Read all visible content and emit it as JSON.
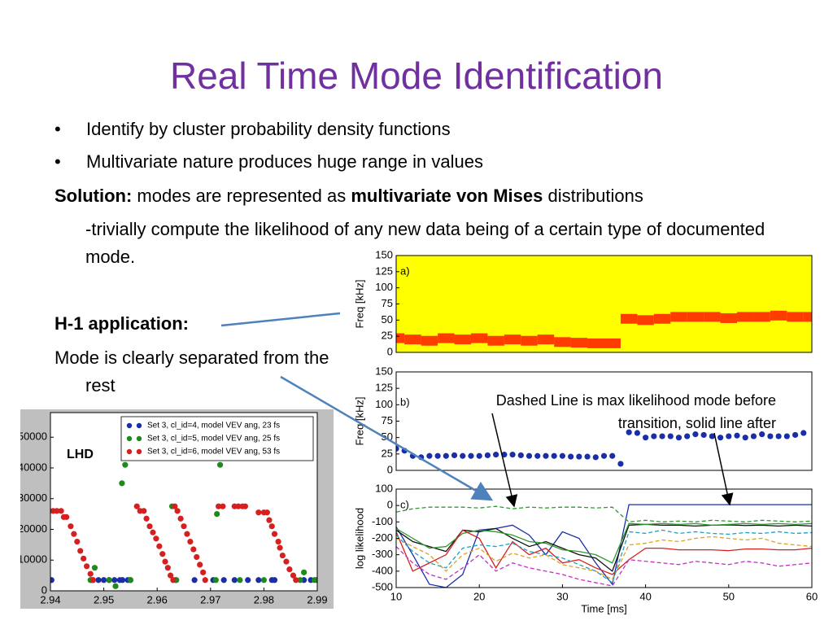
{
  "title": "Real Time Mode Identification",
  "bullets": [
    "Identify by cluster probability density functions",
    "Multivariate nature produces huge range in values"
  ],
  "solution": {
    "label": "Solution:",
    "text1": " modes are represented as ",
    "bold": "multivariate von Mises",
    "text2": " distributions"
  },
  "solution_detail": "-trivially compute the likelihood of any new data being of a certain type of documented mode.",
  "h1": {
    "label": "H-1 application:",
    "text": "Mode is clearly separated from the rest"
  },
  "annotation": "Dashed Line is max likelihood mode before transition, solid line after",
  "chart_data": [
    {
      "type": "scatter",
      "annotation": "LHD",
      "xlim": [
        2.94,
        2.99
      ],
      "xticks": [
        {
          "value": 2.94,
          "label": "2.94"
        },
        2.95,
        2.96,
        2.97,
        2.98,
        2.99
      ],
      "ylim": [
        0,
        58000
      ],
      "yticks": [
        0,
        10000,
        20000,
        30000,
        40000,
        50000
      ],
      "legend": "upper right",
      "series": [
        {
          "name": "Set 3, cl_id=4, model VEV ang, 23 fs",
          "color": "#1a2ea8",
          "x": [
            2.9402,
            2.9478,
            2.949,
            2.95,
            2.951,
            2.952,
            2.953,
            2.9535,
            2.9545,
            2.955,
            2.9635,
            2.967,
            2.9705,
            2.9725,
            2.9745,
            2.977,
            2.979,
            2.9815,
            2.982,
            2.9875,
            2.9888,
            2.99
          ],
          "values": [
            3500,
            3500,
            3500,
            3500,
            3500,
            3500,
            3500,
            3500,
            3500,
            3500,
            3500,
            3500,
            3500,
            3500,
            3500,
            3500,
            3500,
            3500,
            3500,
            3500,
            3500,
            3500
          ]
        },
        {
          "name": "Set 3, cl_id=5, model VEV ang, 25 fs",
          "color": "#1e8a1e",
          "x": [
            2.9475,
            2.9483,
            2.951,
            2.9522,
            2.9534,
            2.954,
            2.955,
            2.9628,
            2.9636,
            2.971,
            2.9712,
            2.9718,
            2.9755,
            2.98,
            2.9868,
            2.9875,
            2.9895
          ],
          "values": [
            3500,
            7500,
            3500,
            1500,
            35000,
            41000,
            3500,
            27500,
            3500,
            3500,
            25000,
            41000,
            3500,
            3500,
            3500,
            6000,
            3500
          ]
        },
        {
          "name": "Set 3, cl_id=6, model VEV ang, 53 fs",
          "color": "#d62020",
          "x": [
            2.9405,
            2.9412,
            2.942,
            2.9425,
            2.943,
            2.9438,
            2.9444,
            2.945,
            2.9456,
            2.9462,
            2.9468,
            2.9475,
            2.948,
            2.9562,
            2.9568,
            2.9575,
            2.958,
            2.9586,
            2.9592,
            2.9598,
            2.9604,
            2.961,
            2.9615,
            2.962,
            2.9625,
            2.963,
            2.9633,
            2.9638,
            2.9644,
            2.965,
            2.9656,
            2.9662,
            2.9668,
            2.9674,
            2.968,
            2.9686,
            2.969,
            2.9715,
            2.9723,
            2.9745,
            2.9752,
            2.976,
            2.9765,
            2.979,
            2.98,
            2.9806,
            2.981,
            2.9815,
            2.982,
            2.9827,
            2.983,
            2.9835,
            2.9842,
            2.9848,
            2.9855,
            2.986
          ],
          "values": [
            26000,
            26000,
            26000,
            24000,
            24000,
            21000,
            18500,
            16000,
            13000,
            10500,
            8000,
            5500,
            3500,
            27500,
            26000,
            26000,
            23500,
            21000,
            19000,
            17000,
            14500,
            12000,
            9500,
            7500,
            5000,
            3500,
            27500,
            26000,
            23500,
            21000,
            18500,
            16000,
            13500,
            11000,
            8500,
            6000,
            3500,
            27500,
            27500,
            27500,
            27500,
            27500,
            27500,
            25500,
            25500,
            25500,
            23000,
            21000,
            18500,
            16000,
            14000,
            11500,
            9500,
            7000,
            5000,
            3500
          ]
        }
      ]
    },
    {
      "type": "spectrogram",
      "label": "a)",
      "ylabel": "Freq [kHz]",
      "xlim": [
        10,
        60
      ],
      "ylim": [
        0,
        150
      ],
      "yticks": [
        0,
        25,
        50,
        75,
        100,
        125,
        150
      ],
      "color": "#ff1a00",
      "x": [
        10,
        12,
        14,
        16,
        18,
        20,
        22,
        24,
        26,
        28,
        30,
        32,
        34,
        36,
        38,
        40,
        42,
        44,
        46,
        48,
        50,
        52,
        54,
        56,
        58,
        60
      ],
      "values": [
        22,
        20,
        18,
        22,
        20,
        22,
        18,
        20,
        18,
        20,
        16,
        15,
        14,
        14,
        52,
        50,
        52,
        55,
        55,
        55,
        53,
        55,
        55,
        57,
        55,
        55
      ]
    },
    {
      "type": "scatter",
      "label": "b)",
      "ylabel": "Freq [kHz]",
      "xlim": [
        10,
        60
      ],
      "ylim": [
        0,
        150
      ],
      "yticks": [
        0,
        25,
        50,
        75,
        100,
        125,
        150
      ],
      "color": "#1a2ea8",
      "x": [
        10,
        11,
        12,
        13,
        14,
        15,
        16,
        17,
        18,
        19,
        20,
        21,
        22,
        23,
        24,
        25,
        26,
        27,
        28,
        29,
        30,
        31,
        32,
        33,
        34,
        35,
        36,
        37,
        38,
        39,
        40,
        41,
        42,
        43,
        44,
        45,
        46,
        47,
        48,
        49,
        50,
        51,
        52,
        53,
        54,
        55,
        56,
        57,
        58,
        59
      ],
      "values": [
        33,
        30,
        22,
        20,
        22,
        22,
        22,
        23,
        22,
        22,
        22,
        23,
        24,
        24,
        24,
        23,
        22,
        22,
        22,
        22,
        22,
        21,
        21,
        21,
        20,
        22,
        22,
        10,
        58,
        57,
        50,
        52,
        52,
        52,
        50,
        52,
        55,
        54,
        52,
        50,
        52,
        53,
        50,
        52,
        55,
        52,
        52,
        52,
        54,
        57
      ]
    },
    {
      "type": "line",
      "label": "c)",
      "xlabel": "Time [ms]",
      "ylabel": "log likelihood",
      "xlim": [
        10,
        60
      ],
      "xticks": [
        10,
        20,
        30,
        40,
        50,
        60
      ],
      "ylim": [
        -500,
        100
      ],
      "yticks": [
        -500,
        -400,
        -300,
        -200,
        -100,
        0,
        100
      ],
      "x": [
        10,
        12,
        14,
        16,
        18,
        20,
        22,
        24,
        26,
        28,
        30,
        32,
        34,
        36,
        38,
        40,
        42,
        44,
        46,
        48,
        50,
        52,
        54,
        56,
        58,
        60
      ],
      "series": [
        {
          "color": "#1a2ea8",
          "dashed": false,
          "values": [
            -130,
            -300,
            -480,
            -500,
            -420,
            -150,
            -140,
            -120,
            -180,
            -300,
            -160,
            -200,
            -350,
            -480,
            5,
            5,
            5,
            5,
            5,
            5,
            5,
            5,
            5,
            5,
            5,
            5
          ]
        },
        {
          "color": "#2e9a2e",
          "dashed": true,
          "values": [
            -40,
            -20,
            -10,
            -10,
            -10,
            -15,
            -5,
            -20,
            -10,
            -15,
            -10,
            -10,
            -15,
            -10,
            -100,
            -90,
            -100,
            -95,
            -100,
            -90,
            -95,
            -100,
            -90,
            -95,
            -100,
            -95
          ]
        },
        {
          "color": "#111111",
          "dashed": false,
          "values": [
            -150,
            -220,
            -250,
            -280,
            -150,
            -160,
            -140,
            -200,
            -250,
            -220,
            -260,
            -300,
            -320,
            -400,
            -120,
            -115,
            -120,
            -120,
            -125,
            -120,
            -118,
            -122,
            -120,
            -125,
            -120,
            -125
          ]
        },
        {
          "color": "#2e9a2e",
          "dashed": false,
          "values": [
            -140,
            -200,
            -260,
            -250,
            -170,
            -150,
            -160,
            -180,
            -220,
            -230,
            -270,
            -280,
            -300,
            -350,
            -110,
            -115,
            -110,
            -115,
            -110,
            -120,
            -115,
            -110,
            -115,
            -110,
            -115,
            -110
          ]
        },
        {
          "color": "#d62020",
          "dashed": false,
          "values": [
            -160,
            -400,
            -350,
            -300,
            -150,
            -200,
            -380,
            -220,
            -300,
            -260,
            -350,
            -330,
            -380,
            -420,
            -330,
            -260,
            -260,
            -270,
            -270,
            -270,
            -275,
            -265,
            -265,
            -270,
            -270,
            -260
          ]
        },
        {
          "color": "#e0a020",
          "dashed": true,
          "values": [
            -200,
            -250,
            -300,
            -400,
            -300,
            -260,
            -340,
            -290,
            -320,
            -300,
            -360,
            -380,
            -400,
            -450,
            -240,
            -230,
            -210,
            -220,
            -200,
            -190,
            -200,
            -210,
            -200,
            -230,
            -240,
            -250
          ]
        },
        {
          "color": "#c030c0",
          "dashed": true,
          "values": [
            -250,
            -350,
            -420,
            -450,
            -380,
            -300,
            -400,
            -350,
            -380,
            -400,
            -420,
            -450,
            -470,
            -490,
            -330,
            -340,
            -350,
            -360,
            -340,
            -350,
            -360,
            -340,
            -350,
            -370,
            -360,
            -350
          ]
        },
        {
          "color": "#20a0c0",
          "dashed": true,
          "values": [
            -180,
            -280,
            -350,
            -380,
            -260,
            -240,
            -250,
            -230,
            -280,
            -300,
            -320,
            -360,
            -400,
            -470,
            -160,
            -170,
            -150,
            -170,
            -160,
            -170,
            -175,
            -165,
            -170,
            -160,
            -170,
            -165
          ]
        }
      ]
    }
  ]
}
